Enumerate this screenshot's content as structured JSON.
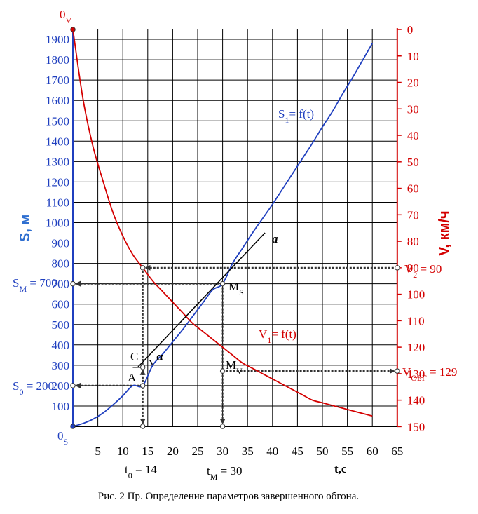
{
  "chart_data": {
    "type": "line",
    "caption": "Рис. 2 Пр. Определение параметров завершенного обгона.",
    "x_axis": {
      "label": "t,c",
      "range": [
        0,
        65
      ],
      "ticks": [
        5,
        10,
        15,
        20,
        25,
        30,
        35,
        40,
        45,
        50,
        55,
        60,
        65
      ]
    },
    "y_left": {
      "label": "S, м",
      "range": [
        0,
        1950
      ],
      "ticks": [
        100,
        200,
        300,
        400,
        500,
        600,
        700,
        800,
        900,
        1000,
        1100,
        1200,
        1300,
        1400,
        1500,
        1600,
        1700,
        1800,
        1900
      ]
    },
    "y_right": {
      "label": "V, км/ч",
      "range": [
        0,
        150
      ],
      "inverted": true,
      "ticks": [
        0,
        10,
        20,
        30,
        40,
        50,
        60,
        70,
        80,
        90,
        100,
        110,
        120,
        130,
        140,
        150
      ]
    },
    "grid": true,
    "series": [
      {
        "name": "S1= f(t)",
        "axis": "left",
        "color": "#1f3fbf",
        "x": [
          0,
          2,
          4,
          6,
          8,
          10,
          12,
          14,
          16,
          18,
          20,
          22,
          24,
          26,
          28,
          30,
          32,
          34,
          36,
          38,
          40,
          42,
          44,
          46,
          48,
          50,
          52,
          54,
          56,
          58,
          60
        ],
        "y": [
          0,
          14,
          35,
          65,
          105,
          150,
          200,
          200,
          300,
          355,
          415,
          475,
          540,
          605,
          670,
          700,
          800,
          875,
          950,
          1020,
          1090,
          1165,
          1240,
          1315,
          1390,
          1470,
          1545,
          1630,
          1710,
          1795,
          1880
        ]
      },
      {
        "name": "V1= f(t)",
        "axis": "right",
        "color": "#d40000",
        "x": [
          0,
          2,
          4,
          6,
          8,
          10,
          12,
          14,
          16,
          18,
          20,
          22,
          24,
          26,
          28,
          30,
          32,
          34,
          36,
          38,
          40,
          42,
          44,
          46,
          48,
          50,
          52,
          54,
          56,
          58,
          60
        ],
        "y": [
          0,
          26,
          44,
          57,
          69,
          78,
          85,
          90,
          95,
          99,
          103,
          107,
          111,
          114,
          117,
          120,
          123,
          126,
          128,
          130,
          132,
          134,
          136,
          138,
          140,
          141,
          142,
          143,
          144,
          145,
          146
        ]
      }
    ],
    "tangent": {
      "name": "a",
      "from": [
        13,
        290
      ],
      "to": [
        38.5,
        950
      ]
    },
    "points": {
      "O_V": "0V",
      "O_S": "0S",
      "S_M": "SM = 700",
      "S_0": "S0 = 200",
      "V_2": "V2 = 90",
      "V_ovg": "VОБГ = 129",
      "M_S": "MS",
      "M_V": "MV",
      "C": "C",
      "A": "A",
      "alpha": "α",
      "t_0": "t0 = 14",
      "t_M": "tM = 30"
    },
    "values": {
      "t0": 14,
      "tM": 30,
      "S0": 200,
      "SM": 700,
      "V2": 90,
      "Vobg": 129
    }
  },
  "labels": {
    "series_s": "S1= f(t)",
    "series_v": "V1= f(t)",
    "tangent": "a",
    "alpha": "α",
    "C": "C",
    "A": "A",
    "MS": "MS",
    "MV": "MV",
    "SM": "SM = 700",
    "S0": "S0 = 200",
    "V2": "V2 = 90",
    "Vobg": "VОБГ = 129",
    "t0": "t0 = 14",
    "tM": "tM = 30",
    "O_V": "0V",
    "O_S": "0S",
    "x_title": "t,c",
    "yl_title": "S, м",
    "yr_title": "V, км/ч",
    "caption": "Рис. 2 Пр. Определение параметров завершенного обгона."
  }
}
